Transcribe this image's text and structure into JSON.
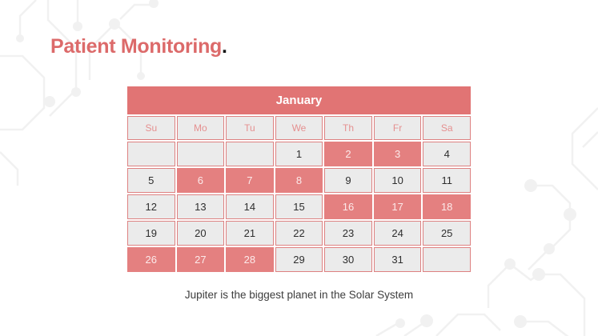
{
  "slide": {
    "title": "Patient Monitoring",
    "title_period": ".",
    "caption": "Jupiter is the biggest planet in the Solar System"
  },
  "calendar": {
    "month": "January",
    "day_headers": [
      "Su",
      "Mo",
      "Tu",
      "We",
      "Th",
      "Fr",
      "Sa"
    ],
    "weeks": [
      [
        "",
        "",
        "",
        "1",
        "2",
        "3",
        "4"
      ],
      [
        "5",
        "6",
        "7",
        "8",
        "9",
        "10",
        "11"
      ],
      [
        "12",
        "13",
        "14",
        "15",
        "16",
        "17",
        "18"
      ],
      [
        "19",
        "20",
        "21",
        "22",
        "23",
        "24",
        "25"
      ],
      [
        "26",
        "27",
        "28",
        "29",
        "30",
        "31",
        ""
      ]
    ],
    "highlighted_days": [
      "2",
      "3",
      "6",
      "7",
      "8",
      "16",
      "17",
      "18",
      "26",
      "27",
      "28"
    ]
  },
  "colors": {
    "accent": "#e17474",
    "accent_cell": "#e48080",
    "cell_border": "#dd8181",
    "cell_gray": "#ebebeb",
    "title_red": "#dc6a6a",
    "caption_gray": "#3d3d3d",
    "decoration_gray": "#f1f1f1"
  }
}
